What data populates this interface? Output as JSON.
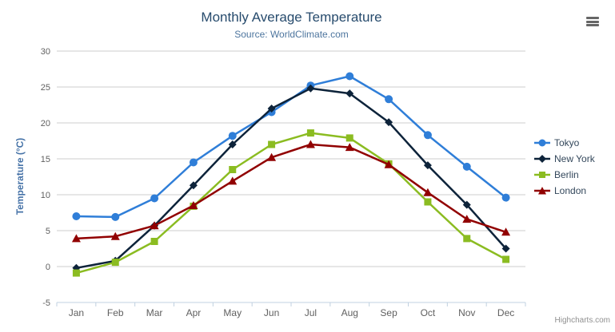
{
  "header": {
    "title": "Monthly Average Temperature",
    "subtitle": "Source: WorldClimate.com"
  },
  "credits_label": "Highcharts.com",
  "export_menu": {
    "icon": "hamburger-icon"
  },
  "theme": {
    "title_color": "#274b6d",
    "subtitle_color": "#4d759e",
    "axis_title_color": "#4572a7",
    "axis_label_color": "#606060",
    "grid_color": "#cccccc",
    "axis_line_color": "#c0d0e0",
    "legend_text_color": "#33475b",
    "credits_color": "#909090"
  },
  "chart_data": {
    "type": "line",
    "title": "Monthly Average Temperature",
    "subtitle": "Source: WorldClimate.com",
    "xlabel": "",
    "ylabel": "Temperature (°C)",
    "categories": [
      "Jan",
      "Feb",
      "Mar",
      "Apr",
      "May",
      "Jun",
      "Jul",
      "Aug",
      "Sep",
      "Oct",
      "Nov",
      "Dec"
    ],
    "series": [
      {
        "name": "Tokyo",
        "color": "#2f7ed8",
        "marker": "circle",
        "values": [
          7.0,
          6.9,
          9.5,
          14.5,
          18.2,
          21.5,
          25.2,
          26.5,
          23.3,
          18.3,
          13.9,
          9.6
        ]
      },
      {
        "name": "New York",
        "color": "#0d233a",
        "marker": "diamond",
        "values": [
          -0.2,
          0.8,
          5.7,
          11.3,
          17.0,
          22.0,
          24.8,
          24.1,
          20.1,
          14.1,
          8.6,
          2.5
        ]
      },
      {
        "name": "Berlin",
        "color": "#8bbc21",
        "marker": "square",
        "values": [
          -0.9,
          0.6,
          3.5,
          8.4,
          13.5,
          17.0,
          18.6,
          17.9,
          14.3,
          9.0,
          3.9,
          1.0
        ]
      },
      {
        "name": "London",
        "color": "#910000",
        "marker": "triangle",
        "values": [
          3.9,
          4.2,
          5.7,
          8.5,
          11.9,
          15.2,
          17.0,
          16.6,
          14.2,
          10.3,
          6.6,
          4.8
        ]
      }
    ],
    "ylim": [
      -5,
      30
    ],
    "ytick_step": 5,
    "grid": true,
    "legend_position": "right"
  }
}
